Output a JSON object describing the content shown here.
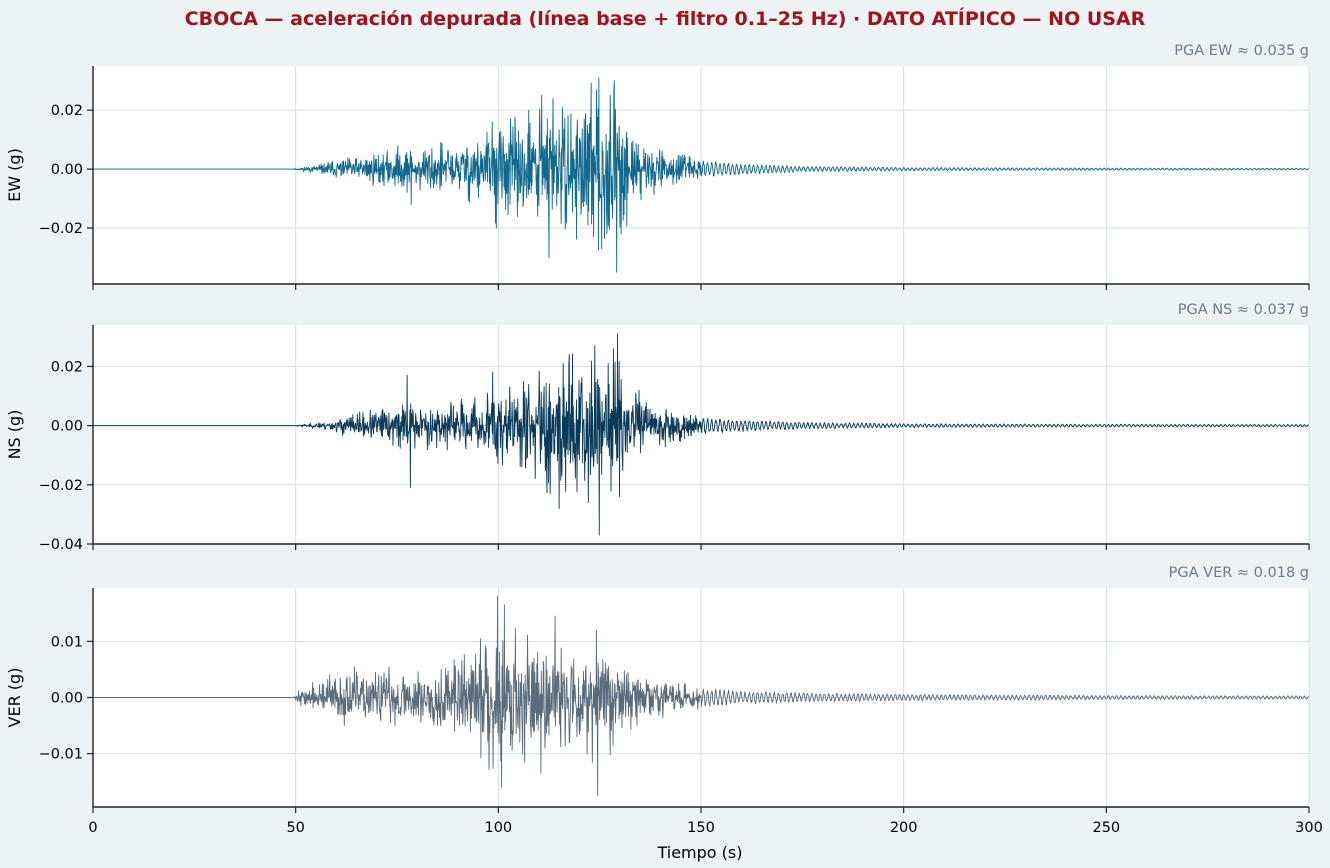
{
  "title": "CBOCA — aceleración depurada (línea base + filtro 0.1–25 Hz)  ·  DATO ATÍPICO — NO USAR",
  "colors": {
    "background": "#edf2f5",
    "plot_bg": "#ffffff",
    "title": "#a0121c",
    "annotation": "#6b7c8a",
    "grid": "#d2dde3",
    "ew": "#11698e",
    "ns": "#0a3a5a",
    "ver": "#5a6b7b"
  },
  "chart_data": {
    "type": "line",
    "xlabel": "Tiempo (s)",
    "xlim": [
      0,
      300
    ],
    "x_ticks": [
      0,
      50,
      100,
      150,
      200,
      250,
      300
    ],
    "grid": true,
    "panels": [
      {
        "name": "EW",
        "ylabel": "EW (g)",
        "pga_label": "PGA EW ≈ 0.035 g",
        "pga": 0.035,
        "color_key": "ew",
        "ylim": [
          -0.039,
          0.035
        ],
        "y_ticks": [
          0.02,
          0.0,
          -0.02
        ],
        "y_tick_labels": [
          "0.02",
          "0.00",
          "−0.02"
        ],
        "onset": 49,
        "envelope": {
          "t": [
            49,
            55,
            62,
            70,
            80,
            90,
            96,
            100,
            105,
            110,
            113,
            117,
            120,
            123,
            126,
            129,
            131,
            135,
            140,
            145,
            150,
            160,
            175,
            200,
            250,
            300
          ],
          "a": [
            0.0,
            0.0012,
            0.003,
            0.005,
            0.0065,
            0.008,
            0.011,
            0.013,
            0.014,
            0.017,
            0.02,
            0.018,
            0.019,
            0.024,
            0.018,
            0.03,
            0.014,
            0.008,
            0.0055,
            0.004,
            0.003,
            0.0019,
            0.001,
            0.0006,
            0.0004,
            0.0003
          ]
        },
        "spikes": [
          {
            "t": 78.5,
            "v": -0.012
          },
          {
            "t": 98.5,
            "v": 0.016
          },
          {
            "t": 99.5,
            "v": -0.02
          },
          {
            "t": 107.5,
            "v": 0.02
          },
          {
            "t": 110.7,
            "v": 0.025
          },
          {
            "t": 112.5,
            "v": -0.03
          },
          {
            "t": 113.5,
            "v": 0.024
          },
          {
            "t": 123.5,
            "v": -0.023
          },
          {
            "t": 124.8,
            "v": 0.031
          },
          {
            "t": 125.5,
            "v": -0.027
          },
          {
            "t": 129.2,
            "v": -0.035
          },
          {
            "t": 128.6,
            "v": 0.03
          },
          {
            "t": 130.3,
            "v": -0.022
          }
        ],
        "seed": 11
      },
      {
        "name": "NS",
        "ylabel": "NS (g)",
        "pga_label": "PGA NS ≈ 0.037 g",
        "pga": 0.037,
        "color_key": "ns",
        "ylim": [
          -0.04,
          0.034
        ],
        "y_ticks": [
          0.02,
          0.0,
          -0.02,
          -0.04
        ],
        "y_tick_labels": [
          "0.02",
          "0.00",
          "−0.02",
          "−0.04"
        ],
        "onset": 49,
        "envelope": {
          "t": [
            49,
            55,
            62,
            70,
            78,
            85,
            92,
            98,
            104,
            110,
            113,
            117,
            120,
            123,
            126,
            129,
            132,
            136,
            140,
            145,
            150,
            160,
            175,
            200,
            250,
            300
          ],
          "a": [
            0.0,
            0.0008,
            0.0025,
            0.0045,
            0.007,
            0.006,
            0.007,
            0.011,
            0.012,
            0.016,
            0.019,
            0.02,
            0.016,
            0.022,
            0.015,
            0.02,
            0.012,
            0.009,
            0.006,
            0.005,
            0.003,
            0.002,
            0.0012,
            0.0007,
            0.0005,
            0.0004
          ]
        },
        "spikes": [
          {
            "t": 77.5,
            "v": 0.017
          },
          {
            "t": 78.3,
            "v": -0.021
          },
          {
            "t": 98.6,
            "v": 0.018
          },
          {
            "t": 112.8,
            "v": -0.023
          },
          {
            "t": 115.0,
            "v": -0.028
          },
          {
            "t": 116.0,
            "v": 0.021
          },
          {
            "t": 117.5,
            "v": 0.024
          },
          {
            "t": 123.8,
            "v": 0.027
          },
          {
            "t": 124.9,
            "v": -0.037
          },
          {
            "t": 127.1,
            "v": 0.021
          },
          {
            "t": 129.4,
            "v": 0.031
          },
          {
            "t": 129.9,
            "v": -0.024
          }
        ],
        "seed": 23
      },
      {
        "name": "VER",
        "ylabel": "VER (g)",
        "pga_label": "PGA VER ≈ 0.018 g",
        "pga": 0.018,
        "color_key": "ver",
        "ylim": [
          -0.0195,
          0.0195
        ],
        "y_ticks": [
          0.01,
          0.0,
          -0.01
        ],
        "y_tick_labels": [
          "0.01",
          "0.00",
          "−0.01"
        ],
        "onset": 49,
        "envelope": {
          "t": [
            49,
            52,
            58,
            66,
            75,
            83,
            90,
            96,
            100,
            106,
            112,
            117,
            122,
            126,
            130,
            135,
            140,
            145,
            150,
            160,
            170,
            180,
            200,
            250,
            300
          ],
          "a": [
            0.0,
            0.0015,
            0.003,
            0.004,
            0.0045,
            0.005,
            0.006,
            0.009,
            0.011,
            0.009,
            0.008,
            0.008,
            0.0075,
            0.007,
            0.006,
            0.004,
            0.0028,
            0.0023,
            0.0018,
            0.0012,
            0.001,
            0.0008,
            0.0006,
            0.0004,
            0.0003
          ]
        },
        "spikes": [
          {
            "t": 99.8,
            "v": 0.018
          },
          {
            "t": 100.8,
            "v": -0.016
          },
          {
            "t": 101.5,
            "v": 0.0165
          },
          {
            "t": 106.5,
            "v": -0.0115
          },
          {
            "t": 110.5,
            "v": -0.0135
          },
          {
            "t": 114.0,
            "v": 0.0145
          },
          {
            "t": 124.5,
            "v": -0.0175
          },
          {
            "t": 124.2,
            "v": 0.012
          }
        ],
        "seed": 37
      }
    ]
  }
}
